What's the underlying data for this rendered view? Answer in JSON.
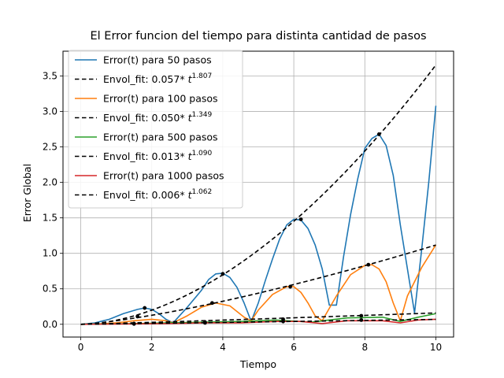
{
  "chart_data": {
    "type": "line",
    "title": "El Error funcion del tiempo para distinta cantidad de pasos",
    "xlabel": "Tiempo",
    "ylabel": "Error Global",
    "xlim": [
      -0.5,
      10.5
    ],
    "ylim": [
      -0.18,
      3.85
    ],
    "xticks": [
      0,
      2,
      4,
      6,
      8,
      10
    ],
    "yticks": [
      0.0,
      0.5,
      1.0,
      1.5,
      2.0,
      2.5,
      3.0,
      3.5
    ],
    "grid": true,
    "legend_position": "top-left",
    "legend": [
      {
        "label": "Error(t) para 50 pasos",
        "color": "#1f77b4",
        "dashed": false
      },
      {
        "label": "Envol_fit: 0.057",
        "sup": "1.807",
        "color": "#000000",
        "dashed": true
      },
      {
        "label": "Error(t) para 100 pasos",
        "color": "#ff7f0e",
        "dashed": false
      },
      {
        "label": "Envol_fit: 0.050",
        "sup": "1.349",
        "color": "#000000",
        "dashed": true
      },
      {
        "label": "Error(t) para 500 pasos",
        "color": "#2ca02c",
        "dashed": false
      },
      {
        "label": "Envol_fit: 0.013",
        "sup": "1.090",
        "color": "#000000",
        "dashed": true
      },
      {
        "label": "Error(t) para 1000 pasos",
        "color": "#d62728",
        "dashed": false
      },
      {
        "label": "Envol_fit: 0.006",
        "sup": "1.062",
        "color": "#000000",
        "dashed": true
      }
    ],
    "fit_text": "* t",
    "series": [
      {
        "name": "Error(t) para 50 pasos",
        "color": "#1f77b4",
        "x": [
          0,
          0.4,
          0.8,
          1.2,
          1.6,
          1.8,
          2.0,
          2.2,
          2.4,
          2.6,
          3.0,
          3.4,
          3.6,
          3.8,
          4.0,
          4.2,
          4.4,
          4.6,
          4.8,
          5.0,
          5.2,
          5.4,
          5.6,
          5.8,
          6.0,
          6.2,
          6.4,
          6.6,
          6.8,
          7.0,
          7.2,
          7.4,
          7.6,
          7.8,
          8.0,
          8.2,
          8.4,
          8.6,
          8.8,
          9.0,
          9.2,
          9.4,
          9.6,
          9.8,
          10.0
        ],
        "y": [
          0,
          0.02,
          0.07,
          0.15,
          0.21,
          0.23,
          0.21,
          0.15,
          0.07,
          0.02,
          0.24,
          0.48,
          0.63,
          0.71,
          0.72,
          0.66,
          0.52,
          0.3,
          0.04,
          0.3,
          0.62,
          0.92,
          1.2,
          1.4,
          1.48,
          1.47,
          1.35,
          1.12,
          0.78,
          0.27,
          0.27,
          0.95,
          1.55,
          2.05,
          2.48,
          2.62,
          2.68,
          2.52,
          2.1,
          1.4,
          0.78,
          0.16,
          1.05,
          2.0,
          3.08
        ]
      },
      {
        "name": "Error(t) para 100 pasos",
        "color": "#ff7f0e",
        "x": [
          0,
          0.5,
          1.0,
          1.5,
          2.0,
          2.4,
          2.6,
          3.0,
          3.4,
          3.8,
          4.2,
          4.6,
          4.8,
          5.0,
          5.4,
          5.8,
          6.0,
          6.2,
          6.4,
          6.6,
          6.8,
          7.2,
          7.6,
          8.0,
          8.2,
          8.4,
          8.6,
          8.8,
          9.0,
          9.2,
          9.6,
          10.0
        ],
        "y": [
          0,
          0.005,
          0.02,
          0.05,
          0.07,
          0.05,
          0.02,
          0.12,
          0.24,
          0.3,
          0.26,
          0.1,
          0.05,
          0.2,
          0.42,
          0.53,
          0.53,
          0.45,
          0.3,
          0.12,
          0.05,
          0.4,
          0.7,
          0.83,
          0.84,
          0.78,
          0.6,
          0.3,
          0.05,
          0.4,
          0.8,
          1.12
        ]
      },
      {
        "name": "Error(t) para 500 pasos",
        "color": "#2ca02c",
        "x": [
          0,
          1.5,
          2.5,
          3.5,
          4.5,
          5.5,
          6.5,
          7.5,
          8.5,
          9.0,
          9.5,
          10.0
        ],
        "y": [
          0,
          0.01,
          0.02,
          0.03,
          0.04,
          0.06,
          0.03,
          0.09,
          0.1,
          0.04,
          0.1,
          0.15
        ]
      },
      {
        "name": "Error(t) para 1000 pasos",
        "color": "#d62728",
        "x": [
          0,
          1.5,
          2.5,
          3.5,
          4.5,
          5.5,
          6.2,
          6.8,
          7.5,
          8.5,
          9.0,
          9.5,
          10.0
        ],
        "y": [
          0,
          0.005,
          0.01,
          0.02,
          0.02,
          0.04,
          0.04,
          0.01,
          0.05,
          0.05,
          0.02,
          0.06,
          0.07
        ]
      }
    ],
    "envelopes": [
      {
        "coef": 0.057,
        "exp": 1.807
      },
      {
        "coef": 0.05,
        "exp": 1.349
      },
      {
        "coef": 0.013,
        "exp": 1.09
      },
      {
        "coef": 0.006,
        "exp": 1.062
      }
    ],
    "peak_points": [
      {
        "x": 1.8,
        "y": 0.23
      },
      {
        "x": 4.0,
        "y": 0.71
      },
      {
        "x": 6.2,
        "y": 1.48
      },
      {
        "x": 8.4,
        "y": 2.68
      },
      {
        "x": 1.6,
        "y": 0.11
      },
      {
        "x": 3.7,
        "y": 0.3
      },
      {
        "x": 5.9,
        "y": 0.53
      },
      {
        "x": 8.1,
        "y": 0.84
      },
      {
        "x": 1.5,
        "y": 0.01
      },
      {
        "x": 3.5,
        "y": 0.03
      },
      {
        "x": 5.7,
        "y": 0.07
      },
      {
        "x": 7.9,
        "y": 0.12
      },
      {
        "x": 1.5,
        "y": 0.005
      },
      {
        "x": 3.5,
        "y": 0.02
      },
      {
        "x": 5.7,
        "y": 0.04
      },
      {
        "x": 7.9,
        "y": 0.06
      }
    ]
  }
}
